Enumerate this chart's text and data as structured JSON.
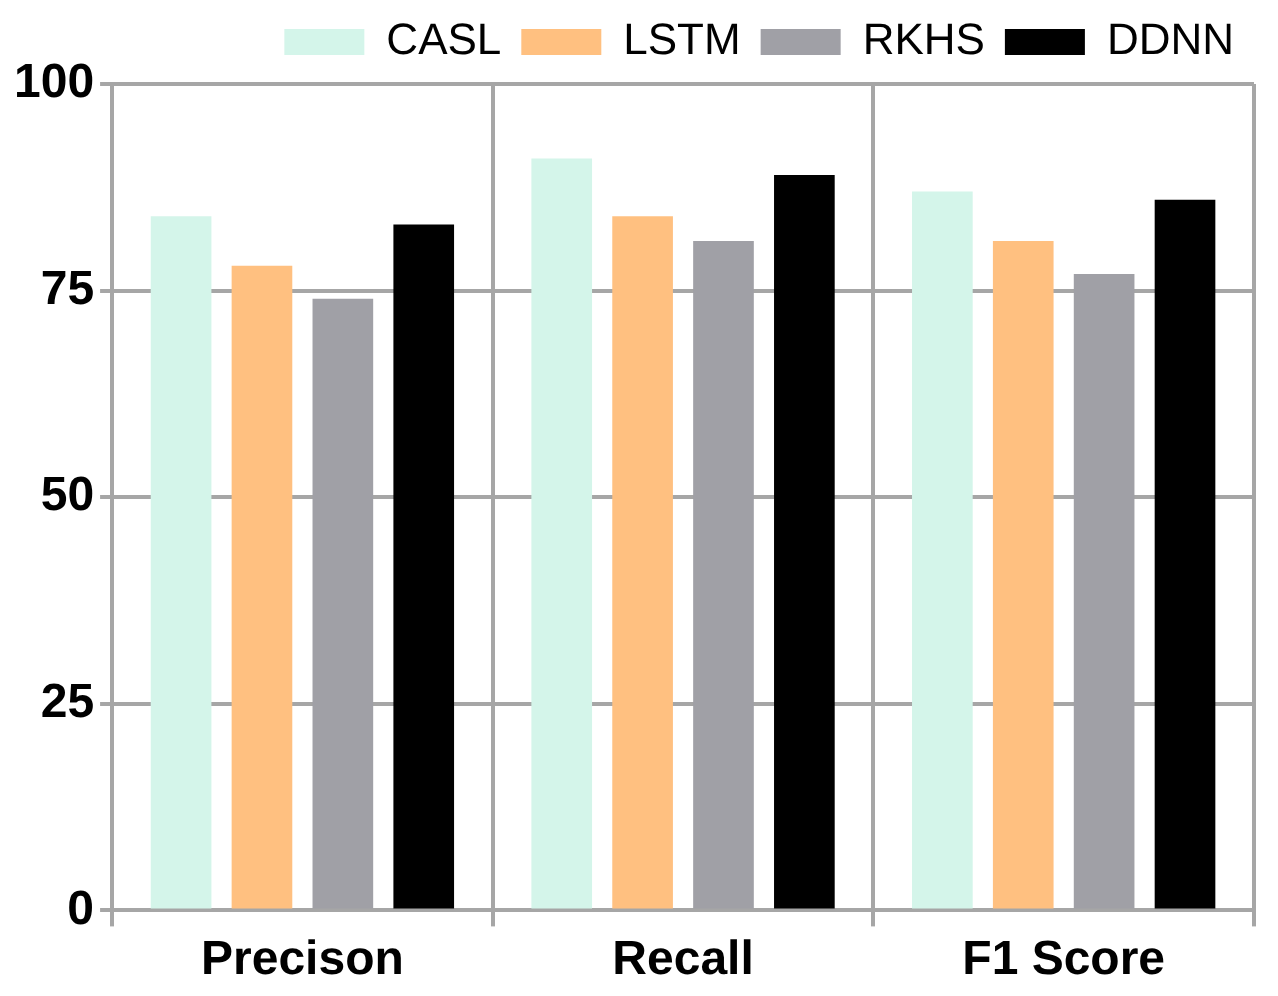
{
  "chart_data": {
    "type": "bar",
    "categories": [
      "Precison",
      "Recall",
      "F1 Score"
    ],
    "series": [
      {
        "name": "CASL",
        "color": "#d4f5ea",
        "values": [
          84,
          91,
          87
        ]
      },
      {
        "name": "LSTM",
        "color": "#ffc080",
        "values": [
          78,
          84,
          81
        ]
      },
      {
        "name": "RKHS",
        "color": "#a0a0a6",
        "values": [
          74,
          81,
          77
        ]
      },
      {
        "name": "DDNN",
        "color": "#000000",
        "values": [
          83,
          89,
          86
        ]
      }
    ],
    "ylim": [
      0,
      100
    ],
    "yticks": [
      0,
      25,
      50,
      75,
      100
    ],
    "grid": true,
    "legend": "top right"
  }
}
